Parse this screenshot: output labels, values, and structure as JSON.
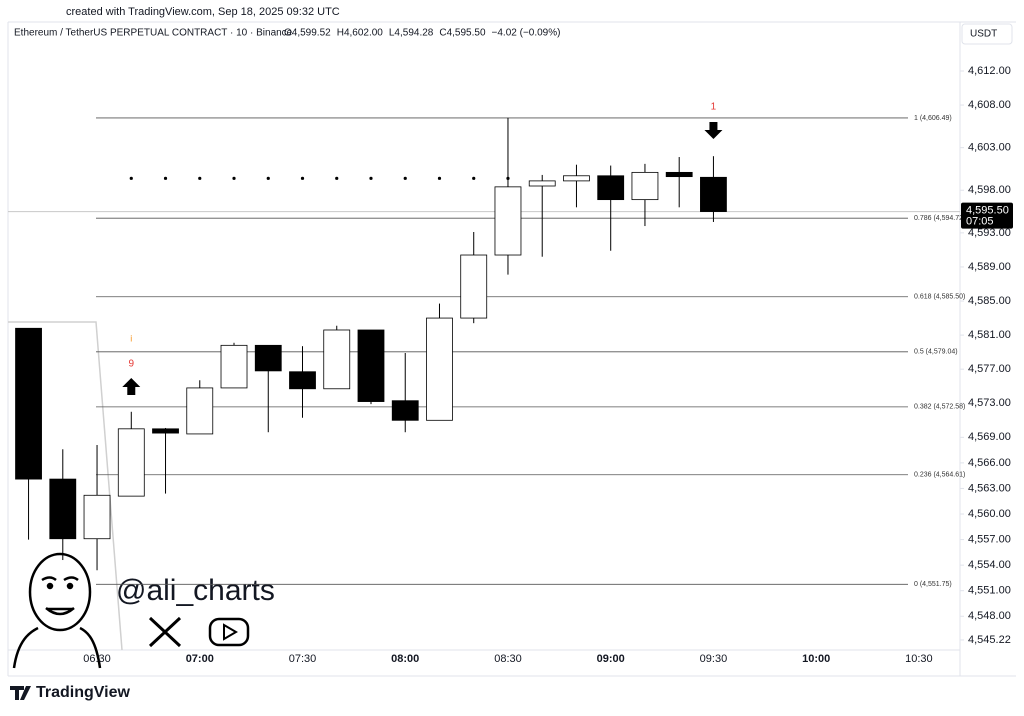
{
  "source": "created with TradingView.com, Sep 18, 2025 09:32 UTC",
  "brand": "TradingView",
  "watermark": "@ali_charts",
  "chart_data": {
    "type": "candlestick",
    "title": "Ethereum / TetherUS PERPETUAL CONTRACT · 10 · Binance",
    "legend": [
      "O4,599.52",
      "H4,602.00",
      "L4,594.28",
      "C4,595.50",
      "−4.02 (−0.09%)"
    ],
    "currency": "USDT",
    "x": [
      "06:10",
      "06:20",
      "06:30",
      "06:40",
      "06:50",
      "07:00",
      "07:10",
      "07:20",
      "07:30",
      "07:40",
      "07:50",
      "08:00",
      "08:10",
      "08:20",
      "08:30",
      "08:40",
      "08:50",
      "09:00",
      "09:10",
      "09:20",
      "09:30"
    ],
    "open": [
      4581.8,
      4564.1,
      4557.1,
      4562.1,
      4570.0,
      4569.4,
      4574.8,
      4579.8,
      4576.7,
      4574.7,
      4581.6,
      4573.3,
      4571.0,
      4583.0,
      4590.4,
      4598.5,
      4599.1,
      4599.7,
      4596.9,
      4600.1,
      4599.52
    ],
    "high": [
      4581.8,
      4567.6,
      4568.1,
      4572.0,
      4570.1,
      4575.7,
      4580.1,
      4579.8,
      4579.7,
      4582.1,
      4581.6,
      4578.9,
      4584.7,
      4593.1,
      4606.5,
      4599.8,
      4601.0,
      4600.9,
      4601.1,
      4601.9,
      4602.0
    ],
    "low": [
      4557.0,
      4554.6,
      4553.4,
      4562.1,
      4562.4,
      4569.4,
      4574.8,
      4569.6,
      4571.3,
      4574.7,
      4572.9,
      4569.6,
      4571.0,
      4582.4,
      4588.1,
      4590.2,
      4596.0,
      4590.9,
      4593.8,
      4596.0,
      4594.28
    ],
    "close": [
      4564.1,
      4557.1,
      4562.2,
      4570.0,
      4569.5,
      4574.8,
      4579.8,
      4576.8,
      4574.7,
      4581.6,
      4573.2,
      4571.0,
      4583.0,
      4590.4,
      4598.4,
      4599.1,
      4599.7,
      4596.9,
      4600.1,
      4599.6,
      4595.5
    ],
    "up_color": "#ffffff",
    "down_color": "#000000",
    "xlim": [
      "06:04",
      "10:42"
    ],
    "xticks": [
      "06:30",
      "07:00",
      "07:30",
      "08:00",
      "08:30",
      "09:00",
      "09:30",
      "10:00",
      "10:30"
    ],
    "ylim": [
      4544.04,
      4615.05
    ],
    "yticks": [
      {
        "value": 4612,
        "label": "4,612.00"
      },
      {
        "value": 4608,
        "label": "4,608.00"
      },
      {
        "value": 4603,
        "label": "4,603.00"
      },
      {
        "value": 4598,
        "label": "4,598.00"
      },
      {
        "value": 4593,
        "label": "4,593.00"
      },
      {
        "value": 4589,
        "label": "4,589.00"
      },
      {
        "value": 4585,
        "label": "4,585.00"
      },
      {
        "value": 4581,
        "label": "4,581.00"
      },
      {
        "value": 4577,
        "label": "4,577.00"
      },
      {
        "value": 4573,
        "label": "4,573.00"
      },
      {
        "value": 4569,
        "label": "4,569.00"
      },
      {
        "value": 4566,
        "label": "4,566.00"
      },
      {
        "value": 4563,
        "label": "4,563.00"
      },
      {
        "value": 4560,
        "label": "4,560.00"
      },
      {
        "value": 4557,
        "label": "4,557.00"
      },
      {
        "value": 4554,
        "label": "4,554.00"
      },
      {
        "value": 4551,
        "label": "4,551.00"
      },
      {
        "value": 4548,
        "label": "4,548.00"
      },
      {
        "value": 4545.22,
        "label": "4,545.22"
      }
    ],
    "fib_levels": [
      4606.49,
      4594.72,
      4585.5,
      4579.04,
      4572.58,
      4564.61,
      4551.75
    ],
    "fib_labels": [
      "1 (4,606.49)",
      "0.786 (4,594.72)",
      "0.618 (4,585.50)",
      "0.5 (4,579.04)",
      "0.382 (4,572.58)",
      "0.236 (4,564.61)",
      "0 (4,551.75)"
    ],
    "dots": {
      "x": [
        "06:40",
        "06:50",
        "07:00",
        "07:10",
        "07:20",
        "07:30",
        "07:40",
        "07:50",
        "08:00",
        "08:10",
        "08:20",
        "08:30"
      ],
      "value": 4599.4
    },
    "annotations": [
      "i",
      "9",
      "1"
    ],
    "last_price": {
      "value": 4595.5,
      "label": "4,595.50"
    },
    "countdown": "07:05"
  }
}
